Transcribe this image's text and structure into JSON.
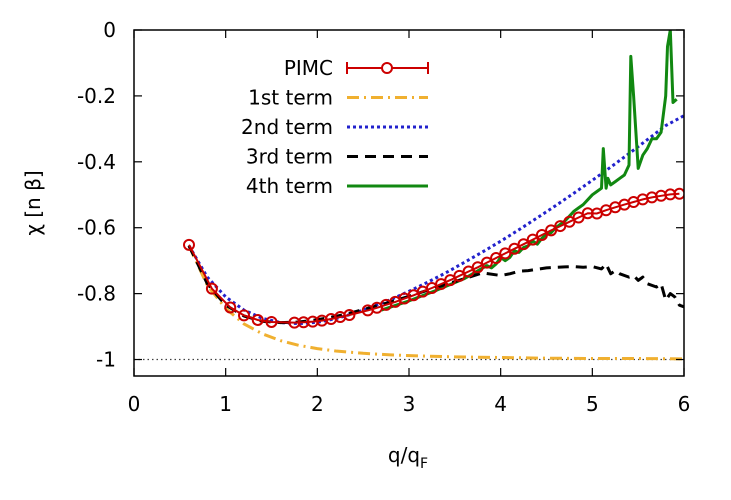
{
  "chart_data": {
    "type": "line",
    "title": "",
    "xlabel": "q/q",
    "xlabel_subscript": "F",
    "ylabel": "χ [n β]",
    "xlim": [
      0,
      6
    ],
    "ylim": [
      -1.05,
      0
    ],
    "x_ticks": [
      0,
      1,
      2,
      3,
      4,
      5,
      6
    ],
    "x_tick_labels": [
      "0",
      "1",
      "2",
      "3",
      "4",
      "5",
      "6"
    ],
    "y_ticks": [
      -1,
      -0.8,
      -0.6,
      -0.4,
      -0.2,
      0
    ],
    "y_tick_labels": [
      "-1",
      "-0.8",
      "-0.6",
      "-0.4",
      "-0.2",
      "0"
    ],
    "reference_line": {
      "y": -1,
      "style": "dotted",
      "color": "#404040"
    },
    "legend_position": "top-left",
    "series": [
      {
        "name": "PIMC",
        "style": "errorbars-circles",
        "color": "#cc0000",
        "x": [
          0.6,
          0.85,
          1.05,
          1.2,
          1.35,
          1.5,
          1.75,
          1.85,
          1.95,
          2.05,
          2.15,
          2.25,
          2.35,
          2.55,
          2.65,
          2.75,
          2.85,
          2.95,
          3.05,
          3.15,
          3.25,
          3.35,
          3.45,
          3.55,
          3.65,
          3.75,
          3.85,
          3.95,
          4.05,
          4.15,
          4.25,
          4.35,
          4.45,
          4.55,
          4.65,
          4.75,
          4.85,
          4.95,
          5.05,
          5.15,
          5.25,
          5.35,
          5.45,
          5.55,
          5.65,
          5.75,
          5.85,
          5.95
        ],
        "y": [
          -0.652,
          -0.785,
          -0.842,
          -0.866,
          -0.88,
          -0.886,
          -0.888,
          -0.887,
          -0.885,
          -0.882,
          -0.877,
          -0.871,
          -0.865,
          -0.851,
          -0.843,
          -0.834,
          -0.825,
          -0.815,
          -0.805,
          -0.794,
          -0.783,
          -0.771,
          -0.759,
          -0.746,
          -0.733,
          -0.72,
          -0.706,
          -0.692,
          -0.678,
          -0.664,
          -0.65,
          -0.636,
          -0.622,
          -0.608,
          -0.595,
          -0.582,
          -0.569,
          -0.556,
          -0.557,
          -0.547,
          -0.538,
          -0.53,
          -0.522,
          -0.514,
          -0.508,
          -0.503,
          -0.499,
          -0.497
        ]
      },
      {
        "name": "1st term",
        "style": "dash-dot",
        "color": "#f0b030",
        "x": [
          0.6,
          0.8,
          1.0,
          1.2,
          1.4,
          1.6,
          1.8,
          2.0,
          2.2,
          2.5,
          2.8,
          3.1,
          3.5,
          4.0,
          4.5,
          5.0,
          5.5,
          6.0
        ],
        "y": [
          -0.655,
          -0.775,
          -0.845,
          -0.892,
          -0.922,
          -0.943,
          -0.957,
          -0.967,
          -0.974,
          -0.981,
          -0.986,
          -0.989,
          -0.992,
          -0.994,
          -0.996,
          -0.997,
          -0.997,
          -0.998
        ]
      },
      {
        "name": "2nd term",
        "style": "dotted",
        "color": "#2222cc",
        "x": [
          0.6,
          0.8,
          1.0,
          1.2,
          1.4,
          1.6,
          1.8,
          2.0,
          2.2,
          2.4,
          2.6,
          2.8,
          3.0,
          3.2,
          3.4,
          3.6,
          3.8,
          4.0,
          4.2,
          4.4,
          4.6,
          4.8,
          5.0,
          5.2,
          5.4,
          5.6,
          5.8,
          6.0
        ],
        "y": [
          -0.655,
          -0.75,
          -0.81,
          -0.85,
          -0.875,
          -0.888,
          -0.891,
          -0.887,
          -0.876,
          -0.86,
          -0.84,
          -0.818,
          -0.793,
          -0.766,
          -0.737,
          -0.706,
          -0.674,
          -0.641,
          -0.606,
          -0.57,
          -0.533,
          -0.495,
          -0.456,
          -0.416,
          -0.375,
          -0.333,
          -0.29,
          -0.26
        ]
      },
      {
        "name": "3rd term",
        "style": "dashed",
        "color": "#000000",
        "x": [
          0.6,
          0.8,
          1.0,
          1.2,
          1.4,
          1.6,
          1.8,
          2.0,
          2.2,
          2.4,
          2.6,
          2.8,
          3.0,
          3.2,
          3.4,
          3.6,
          3.8,
          4.0,
          4.1,
          4.2,
          4.3,
          4.4,
          4.5,
          4.6,
          4.7,
          4.8,
          4.9,
          5.0,
          5.1,
          5.15,
          5.2,
          5.25,
          5.3,
          5.4,
          5.45,
          5.5,
          5.55,
          5.6,
          5.7,
          5.75,
          5.8,
          5.85,
          5.9,
          5.95,
          6.0
        ],
        "y": [
          -0.655,
          -0.77,
          -0.835,
          -0.868,
          -0.884,
          -0.888,
          -0.886,
          -0.879,
          -0.869,
          -0.856,
          -0.841,
          -0.825,
          -0.808,
          -0.79,
          -0.772,
          -0.755,
          -0.737,
          -0.745,
          -0.74,
          -0.732,
          -0.73,
          -0.726,
          -0.722,
          -0.72,
          -0.719,
          -0.718,
          -0.72,
          -0.718,
          -0.725,
          -0.71,
          -0.74,
          -0.73,
          -0.74,
          -0.75,
          -0.745,
          -0.76,
          -0.75,
          -0.77,
          -0.78,
          -0.77,
          -0.82,
          -0.8,
          -0.81,
          -0.835,
          -0.84
        ]
      },
      {
        "name": "4th term",
        "style": "solid",
        "color": "#118811",
        "x": [
          2.7,
          3.0,
          3.3,
          3.6,
          3.85,
          3.9,
          3.95,
          4.0,
          4.05,
          4.1,
          4.15,
          4.2,
          4.25,
          4.3,
          4.35,
          4.4,
          4.45,
          4.5,
          4.55,
          4.6,
          4.65,
          4.7,
          4.75,
          4.8,
          4.85,
          4.9,
          4.95,
          5.0,
          5.05,
          5.1,
          5.12,
          5.15,
          5.17,
          5.2,
          5.25,
          5.3,
          5.35,
          5.4,
          5.42,
          5.45,
          5.5,
          5.55,
          5.6,
          5.65,
          5.7,
          5.75,
          5.8,
          5.82,
          5.85,
          5.88,
          5.92
        ],
        "y": [
          -0.85,
          -0.822,
          -0.79,
          -0.755,
          -0.715,
          -0.722,
          -0.71,
          -0.69,
          -0.7,
          -0.69,
          -0.67,
          -0.675,
          -0.66,
          -0.655,
          -0.64,
          -0.65,
          -0.632,
          -0.62,
          -0.615,
          -0.6,
          -0.59,
          -0.58,
          -0.565,
          -0.55,
          -0.54,
          -0.53,
          -0.515,
          -0.5,
          -0.49,
          -0.48,
          -0.36,
          -0.48,
          -0.45,
          -0.47,
          -0.46,
          -0.45,
          -0.44,
          -0.41,
          -0.08,
          -0.2,
          -0.42,
          -0.38,
          -0.36,
          -0.33,
          -0.33,
          -0.31,
          -0.2,
          -0.05,
          0.0,
          -0.22,
          -0.21
        ]
      }
    ]
  }
}
